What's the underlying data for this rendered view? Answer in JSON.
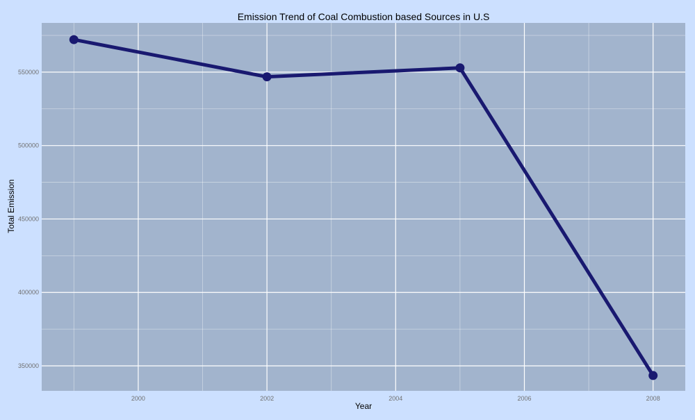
{
  "chart_data": {
    "type": "line",
    "title": "Emission Trend of Coal Combustion based Sources in U.S",
    "xlabel": "Year",
    "ylabel": "Total Emission",
    "x": [
      1999,
      2002,
      2005,
      2008
    ],
    "series": [
      {
        "values": [
          572126,
          546789,
          552881,
          343432
        ]
      }
    ],
    "xlim": [
      1998.5,
      2008.5
    ],
    "ylim": [
      333000,
      583500
    ],
    "x_ticks": [
      2000,
      2002,
      2004,
      2006,
      2008
    ],
    "y_ticks": [
      350000,
      400000,
      450000,
      500000,
      550000
    ],
    "grid": true,
    "legend": "none",
    "colors": {
      "background": "#cce0ff",
      "panel": "#a2b4cd",
      "grid": "#ffffff",
      "line": "#191970",
      "tick_text": "#707070"
    }
  }
}
